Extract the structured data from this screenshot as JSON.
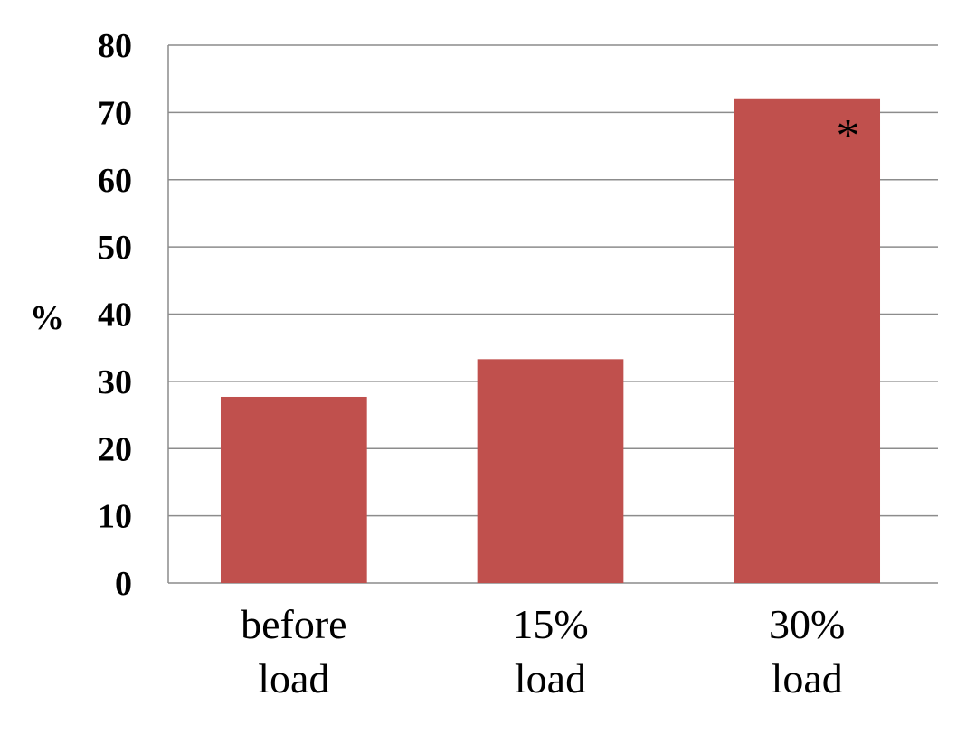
{
  "chart_data": {
    "type": "bar",
    "categories": [
      "before load",
      "15% load",
      "30% load"
    ],
    "category_lines": [
      [
        "before",
        "load"
      ],
      [
        "15%",
        "load"
      ],
      [
        "30%",
        "load"
      ]
    ],
    "values": [
      27.7,
      33.3,
      72.1
    ],
    "bar_color": "#c0504d",
    "title": "",
    "xlabel": "",
    "ylabel": "%",
    "ylim": [
      0,
      80
    ],
    "yticks": [
      0,
      10,
      20,
      30,
      40,
      50,
      60,
      70,
      80
    ],
    "grid": true,
    "annotations": [
      {
        "category": "30% load",
        "text": "*"
      }
    ]
  }
}
